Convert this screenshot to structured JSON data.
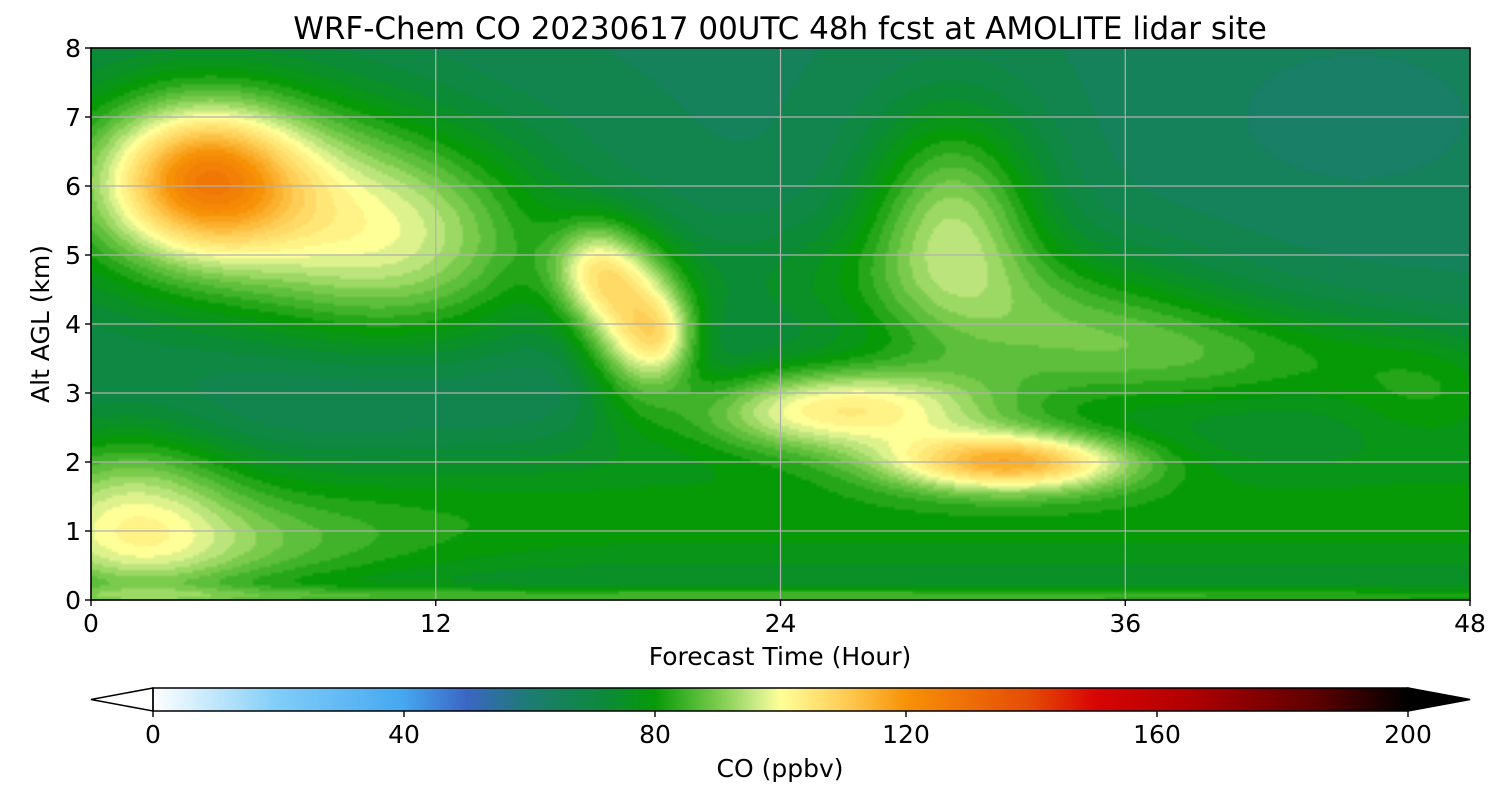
{
  "chart_data": {
    "type": "heatmap",
    "title": "WRF-Chem CO  20230617 00UTC 48h fcst at AMOLITE lidar site",
    "xlabel": "Forecast Time (Hour)",
    "ylabel": "Alt AGL (km)",
    "xlim": [
      0,
      48
    ],
    "ylim": [
      0,
      8
    ],
    "xticks": [
      "0",
      "12",
      "24",
      "36",
      "48"
    ],
    "yticks": [
      "0",
      "1",
      "2",
      "3",
      "4",
      "5",
      "6",
      "7",
      "8"
    ],
    "grid": true,
    "colorbar": {
      "label": "CO  (ppbv)",
      "range": [
        0,
        200
      ],
      "ticks": [
        "0",
        "40",
        "80",
        "120",
        "160",
        "200"
      ],
      "extend": "both",
      "colors": [
        {
          "v": 0,
          "c": "#ffffff"
        },
        {
          "v": 20,
          "c": "#7fcdf8"
        },
        {
          "v": 40,
          "c": "#45a7f0"
        },
        {
          "v": 50,
          "c": "#3b66c4"
        },
        {
          "v": 60,
          "c": "#1c7c72"
        },
        {
          "v": 72,
          "c": "#0c8a3a"
        },
        {
          "v": 80,
          "c": "#079a07"
        },
        {
          "v": 90,
          "c": "#7acb4c"
        },
        {
          "v": 96,
          "c": "#c8ea86"
        },
        {
          "v": 100,
          "c": "#ffff98"
        },
        {
          "v": 110,
          "c": "#ffce56"
        },
        {
          "v": 120,
          "c": "#f79206"
        },
        {
          "v": 140,
          "c": "#e54a05"
        },
        {
          "v": 150,
          "c": "#d90505"
        },
        {
          "v": 165,
          "c": "#b10000"
        },
        {
          "v": 185,
          "c": "#5e0000"
        },
        {
          "v": 200,
          "c": "#000000"
        }
      ]
    },
    "background_level": 66,
    "features": [
      {
        "t": 4,
        "z": 6.0,
        "st": 4.5,
        "sz": 1.2,
        "a": 28
      },
      {
        "t": 4,
        "z": 6.1,
        "st": 2.2,
        "sz": 0.7,
        "a": 30
      },
      {
        "t": 11,
        "z": 5.2,
        "st": 3.8,
        "sz": 1.1,
        "a": 25
      },
      {
        "t": 19,
        "z": 4.0,
        "st": 1.3,
        "sz": 0.75,
        "a": 32
      },
      {
        "t": 20,
        "z": 3.8,
        "st": 0.8,
        "sz": 0.4,
        "a": 12
      },
      {
        "t": 17.5,
        "z": 4.8,
        "st": 1.1,
        "sz": 0.5,
        "a": 22
      },
      {
        "t": 26,
        "z": 2.8,
        "st": 4.0,
        "sz": 0.45,
        "a": 38
      },
      {
        "t": 32,
        "z": 2.0,
        "st": 3.0,
        "sz": 0.3,
        "a": 38
      },
      {
        "t": 30,
        "z": 5.6,
        "st": 2.2,
        "sz": 1.1,
        "a": 24
      },
      {
        "t": 34,
        "z": 4.0,
        "st": 4.0,
        "sz": 0.8,
        "a": 15
      },
      {
        "t": 40,
        "z": 3.5,
        "st": 5.0,
        "sz": 0.6,
        "a": 14
      },
      {
        "t": 47,
        "z": 3.0,
        "st": 2.5,
        "sz": 0.6,
        "a": 10
      },
      {
        "t": 26,
        "z": 4.6,
        "st": 5.0,
        "sz": 0.7,
        "a": 8
      },
      {
        "t": 1.5,
        "z": 1.3,
        "st": 2.5,
        "sz": 1.0,
        "a": 16
      },
      {
        "t": 4,
        "z": 0.7,
        "st": 5.0,
        "sz": 0.5,
        "a": 10
      },
      {
        "t": 24,
        "z": 0.05,
        "st": 28.0,
        "sz": 0.1,
        "a": 14
      },
      {
        "t": 24,
        "z": 3.0,
        "st": 6.0,
        "sz": 0.4,
        "a": -5
      },
      {
        "t": 8,
        "z": 2.8,
        "st": 6.0,
        "sz": 0.6,
        "a": -4
      },
      {
        "t": 44,
        "z": 7.0,
        "st": 5.0,
        "sz": 1.2,
        "a": -3
      }
    ]
  }
}
